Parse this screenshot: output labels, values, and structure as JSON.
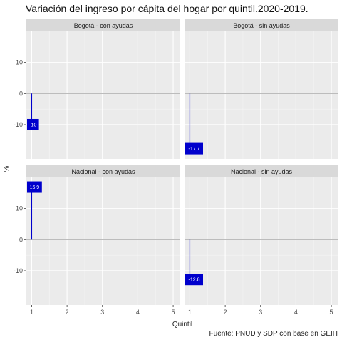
{
  "chart_data": {
    "type": "bar",
    "title": "Variación del ingreso por cápita del hogar por quintil.2020-2019.",
    "caption": "Fuente: PNUD y SDP con base en GEIH",
    "xlabel": "Quintil",
    "ylabel": "%",
    "x_ticks": [
      "1",
      "2",
      "3",
      "4",
      "5"
    ],
    "y_ticks": [
      -10,
      0,
      10
    ],
    "ylim": [
      -21,
      20
    ],
    "grid": true,
    "bar_color": "#0000cc",
    "panels": [
      {
        "name": "Bogotá - con ayudas",
        "x": [
          1
        ],
        "values": [
          -10
        ],
        "labels": [
          "-10"
        ]
      },
      {
        "name": "Bogotá - sin ayudas",
        "x": [
          1
        ],
        "values": [
          -17.7
        ],
        "labels": [
          "-17.7"
        ]
      },
      {
        "name": "Nacional - con ayudas",
        "x": [
          1
        ],
        "values": [
          16.9
        ],
        "labels": [
          "16.9"
        ]
      },
      {
        "name": "Nacional - sin ayudas",
        "x": [
          1
        ],
        "values": [
          -12.8
        ],
        "labels": [
          "-12.8"
        ]
      }
    ]
  }
}
